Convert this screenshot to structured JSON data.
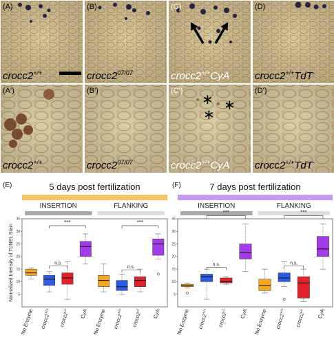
{
  "panels": [
    {
      "label": "(A)",
      "geno_base": "crocc2",
      "geno_sup": "+/+",
      "geno_suffix": ""
    },
    {
      "label": "(B)",
      "geno_base": "crocc2",
      "geno_sup": "07/07",
      "geno_suffix": ""
    },
    {
      "label": "(C)",
      "geno_base": "crocc2",
      "geno_sup": "+/+",
      "geno_suffix": "CyA"
    },
    {
      "label": "(D)",
      "geno_base": "crocc2",
      "geno_sup": "+/+",
      "geno_suffix": "TdT",
      "geno_sup2": "-"
    },
    {
      "label": "(A')",
      "geno_base": "crocc2",
      "geno_sup": "+/+",
      "geno_suffix": ""
    },
    {
      "label": "(B')",
      "geno_base": "crocc2",
      "geno_sup": "07/07",
      "geno_suffix": ""
    },
    {
      "label": "(C')",
      "geno_base": "crocc2",
      "geno_sup": "+/+",
      "geno_suffix": "CyA"
    },
    {
      "label": "(D')",
      "geno_base": "crocc2",
      "geno_sup": "+/+",
      "geno_suffix": "TdT",
      "geno_sup2": "-"
    }
  ],
  "colors": {
    "tissue": "#d8c79c",
    "tissue_dark": "#b59a66",
    "stain": "#2a2340",
    "header_5dpf": "#f5c566",
    "header_7dpf": "#c79af2",
    "section_bar": "#a8a8a8",
    "no_enzyme": "#f5a623",
    "wt": "#2d5be3",
    "mut": "#e0232a",
    "cya": "#a23be8"
  },
  "chart_data": [
    {
      "type": "box",
      "panel_label": "(E)",
      "title": "5 days post fertilization",
      "ylabel": "Normalized Intensity of TUNEL Stain",
      "ylim": [
        0,
        35
      ],
      "yticks": [
        "5",
        "10",
        "15",
        "20",
        "25",
        "30",
        "35"
      ],
      "sections": [
        "INSERTION",
        "FLANKING"
      ],
      "categories": [
        "No Enzyme",
        "crocc2+/+",
        "crocc2-/-",
        "CyA"
      ],
      "category_labels": [
        {
          "base": "No Enzyme",
          "sup": ""
        },
        {
          "base": "crocc2",
          "sup": "+/+"
        },
        {
          "base": "crocc2",
          "sup": "-/-"
        },
        {
          "base": "CyA",
          "sup": ""
        }
      ],
      "groups": [
        {
          "section": "INSERTION",
          "boxes": [
            {
              "category": "No Enzyme",
              "min": 11,
              "q1": 12.5,
              "median": 13.5,
              "q3": 15,
              "max": 15.5,
              "outliers": []
            },
            {
              "category": "crocc2+/+",
              "min": 6,
              "q1": 8.5,
              "median": 11,
              "q3": 12.5,
              "max": 14,
              "outliers": []
            },
            {
              "category": "crocc2-/-",
              "min": 3,
              "q1": 9,
              "median": 11.5,
              "q3": 13.5,
              "max": 18,
              "outliers": []
            },
            {
              "category": "CyA",
              "min": 17,
              "q1": 20,
              "median": 24,
              "q3": 26,
              "max": 29,
              "outliers": []
            }
          ]
        },
        {
          "section": "FLANKING",
          "boxes": [
            {
              "category": "No Enzyme",
              "min": 6,
              "q1": 8,
              "median": 10.5,
              "q3": 12.5,
              "max": 17,
              "outliers": []
            },
            {
              "category": "crocc2+/+",
              "min": 5,
              "q1": 6.5,
              "median": 8,
              "q3": 10.5,
              "max": 13,
              "outliers": []
            },
            {
              "category": "crocc2-/-",
              "min": 6,
              "q1": 8,
              "median": 10.5,
              "q3": 12,
              "max": 15,
              "outliers": []
            },
            {
              "category": "CyA",
              "min": 19,
              "q1": 20.5,
              "median": 25,
              "q3": 27,
              "max": 29,
              "outliers": [
                13
              ]
            }
          ]
        }
      ],
      "comparisons": [
        {
          "section": "INSERTION",
          "label": "***",
          "between": [
            "crocc2+/+",
            "CyA"
          ]
        },
        {
          "section": "INSERTION",
          "label": "n.s.",
          "between": [
            "crocc2+/+",
            "crocc2-/-"
          ]
        },
        {
          "section": "FLANKING",
          "label": "***",
          "between": [
            "crocc2+/+",
            "CyA"
          ]
        },
        {
          "section": "FLANKING",
          "label": "n.s.",
          "between": [
            "crocc2+/+",
            "crocc2-/-"
          ]
        }
      ]
    },
    {
      "type": "box",
      "panel_label": "(F)",
      "title": "7 days post fertilization",
      "ylabel": "",
      "ylim": [
        0,
        35
      ],
      "yticks": [
        "5",
        "10",
        "15",
        "20",
        "25",
        "30",
        "35"
      ],
      "sections": [
        "INSERTION",
        "FLANKING"
      ],
      "categories": [
        "No Enzyme",
        "crocc2+/+",
        "crocc2-/-",
        "CyA"
      ],
      "category_labels": [
        {
          "base": "No Enzyme",
          "sup": ""
        },
        {
          "base": "crocc2",
          "sup": "+/+"
        },
        {
          "base": "crocc2",
          "sup": "-/-"
        },
        {
          "base": "CyA",
          "sup": ""
        }
      ],
      "groups": [
        {
          "section": "INSERTION",
          "boxes": [
            {
              "category": "No Enzyme",
              "min": 7.5,
              "q1": 8,
              "median": 8.5,
              "q3": 9,
              "max": 9.5,
              "outliers": [
                5.5
              ]
            },
            {
              "category": "crocc2+/+",
              "min": 3,
              "q1": 10,
              "median": 12,
              "q3": 13,
              "max": 15,
              "outliers": []
            },
            {
              "category": "crocc2-/-",
              "min": 9,
              "q1": 9.5,
              "median": 10,
              "q3": 11.5,
              "max": 12,
              "outliers": []
            },
            {
              "category": "CyA",
              "min": 14,
              "q1": 19,
              "median": 21.5,
              "q3": 25,
              "max": 33,
              "outliers": []
            }
          ]
        },
        {
          "section": "FLANKING",
          "boxes": [
            {
              "category": "No Enzyme",
              "min": 5.5,
              "q1": 6.5,
              "median": 8.5,
              "q3": 11,
              "max": 15,
              "outliers": []
            },
            {
              "category": "crocc2+/+",
              "min": 8,
              "q1": 10,
              "median": 11.5,
              "q3": 13.5,
              "max": 18,
              "outliers": [
                3
              ]
            },
            {
              "category": "crocc2-/-",
              "min": 2,
              "q1": 3.5,
              "median": 9.5,
              "q3": 12,
              "max": 15,
              "outliers": []
            },
            {
              "category": "CyA",
              "min": 15,
              "q1": 20,
              "median": 23,
              "q3": 28,
              "max": 33,
              "outliers": []
            }
          ]
        }
      ],
      "comparisons": [
        {
          "section": "INSERTION",
          "label": "***",
          "between": [
            "crocc2+/+",
            "CyA"
          ]
        },
        {
          "section": "INSERTION",
          "label": "n.s.",
          "between": [
            "crocc2+/+",
            "crocc2-/-"
          ]
        },
        {
          "section": "FLANKING",
          "label": "***",
          "between": [
            "crocc2+/+",
            "CyA"
          ]
        },
        {
          "section": "FLANKING",
          "label": "n.s.",
          "between": [
            "crocc2+/+",
            "crocc2-/-"
          ]
        }
      ]
    }
  ]
}
